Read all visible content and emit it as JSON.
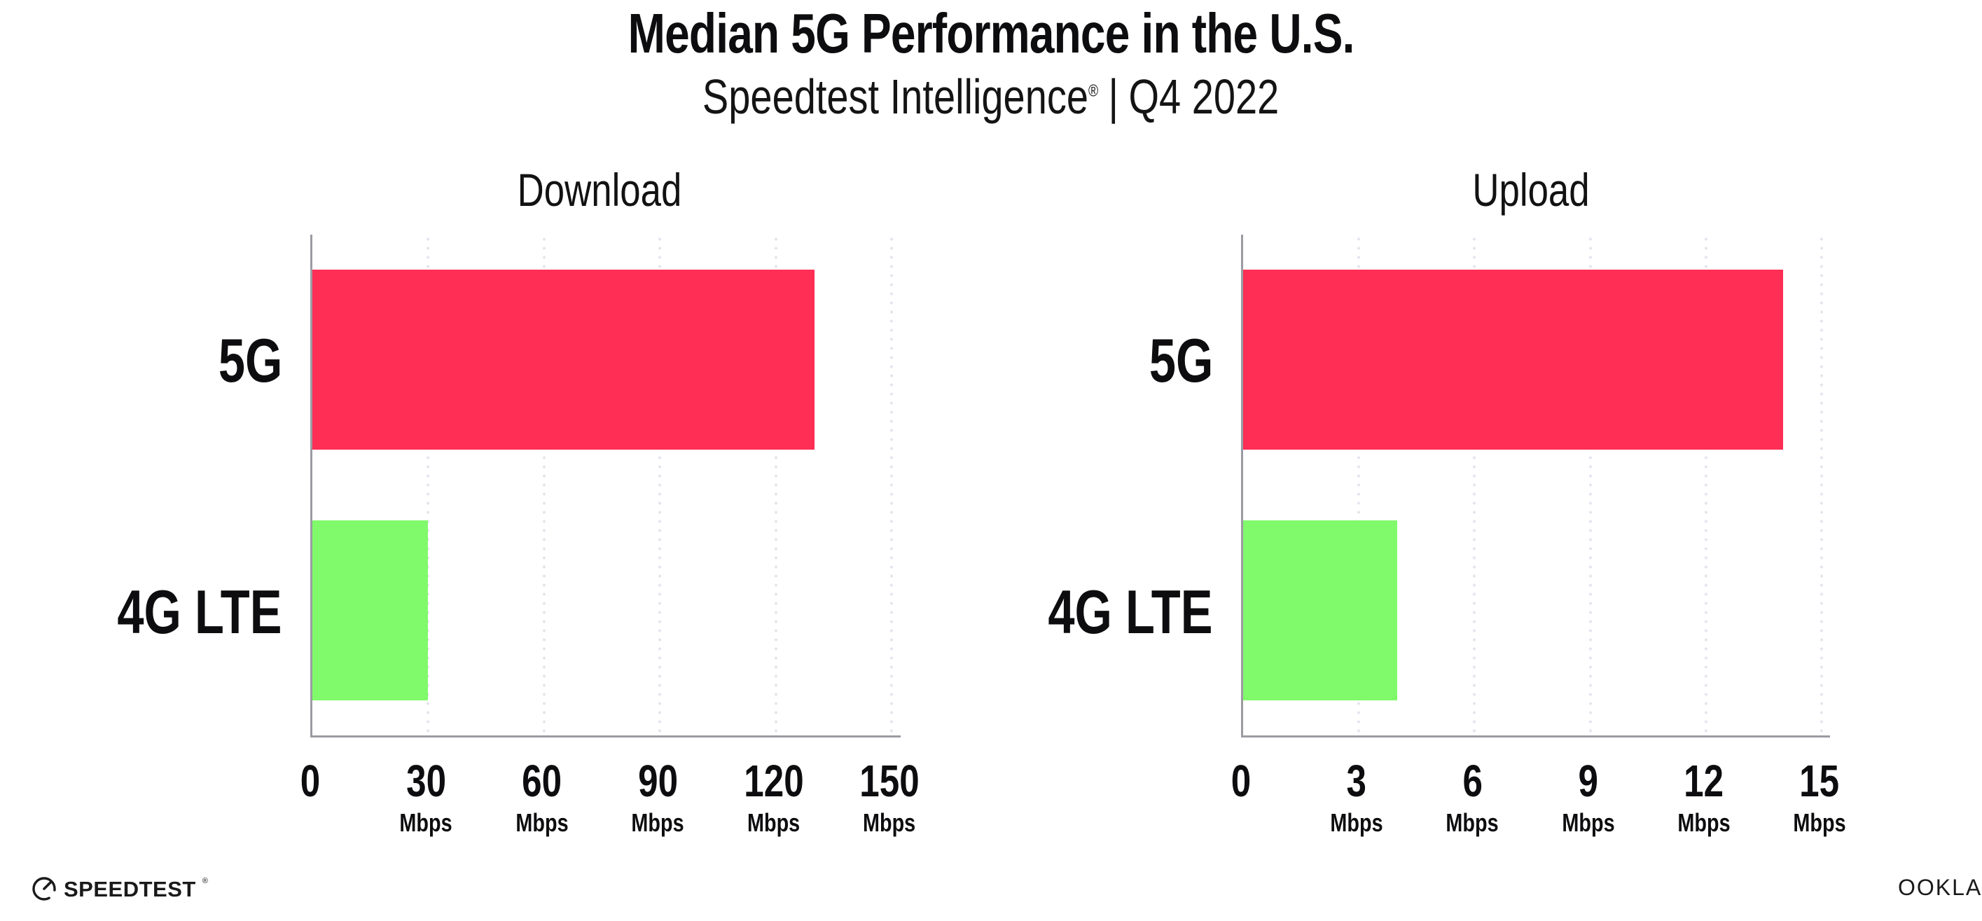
{
  "header": {
    "title": "Median 5G Performance in the U.S.",
    "subtitle": {
      "brand": "Speedtest Intelligence",
      "registered": "®",
      "separator": "|",
      "period": "Q4 2022"
    }
  },
  "chart_data": [
    {
      "type": "bar",
      "orientation": "horizontal",
      "title": "Download",
      "categories": [
        "5G",
        "4G LTE"
      ],
      "values": [
        130,
        30
      ],
      "unit": "Mbps",
      "xlim": [
        0,
        150
      ],
      "xticks": [
        0,
        30,
        60,
        90,
        120,
        150
      ],
      "series_colors": {
        "5G": "#ff2e55",
        "4G LTE": "#80f96b"
      },
      "grid": "vertical-dotted",
      "legend": "none"
    },
    {
      "type": "bar",
      "orientation": "horizontal",
      "title": "Upload",
      "categories": [
        "5G",
        "4G LTE"
      ],
      "values": [
        14,
        4
      ],
      "unit": "Mbps",
      "xlim": [
        0,
        15
      ],
      "xticks": [
        0,
        3,
        6,
        9,
        12,
        15
      ],
      "series_colors": {
        "5G": "#ff2e55",
        "4G LTE": "#80f96b"
      },
      "grid": "vertical-dotted",
      "legend": "none"
    }
  ],
  "footer": {
    "speedtest_logo_text": "SPEEDTEST",
    "speedtest_registered": "®",
    "ookla_logo_text": "OOKLA",
    "ookla_registered": "®"
  },
  "colors": {
    "bar_5g": "#ff2e55",
    "bar_4g_lte": "#80f96b",
    "axis_line": "#9b9ba3",
    "gridline_dots": "#e4e4ee",
    "text": "#0d0d0f"
  }
}
